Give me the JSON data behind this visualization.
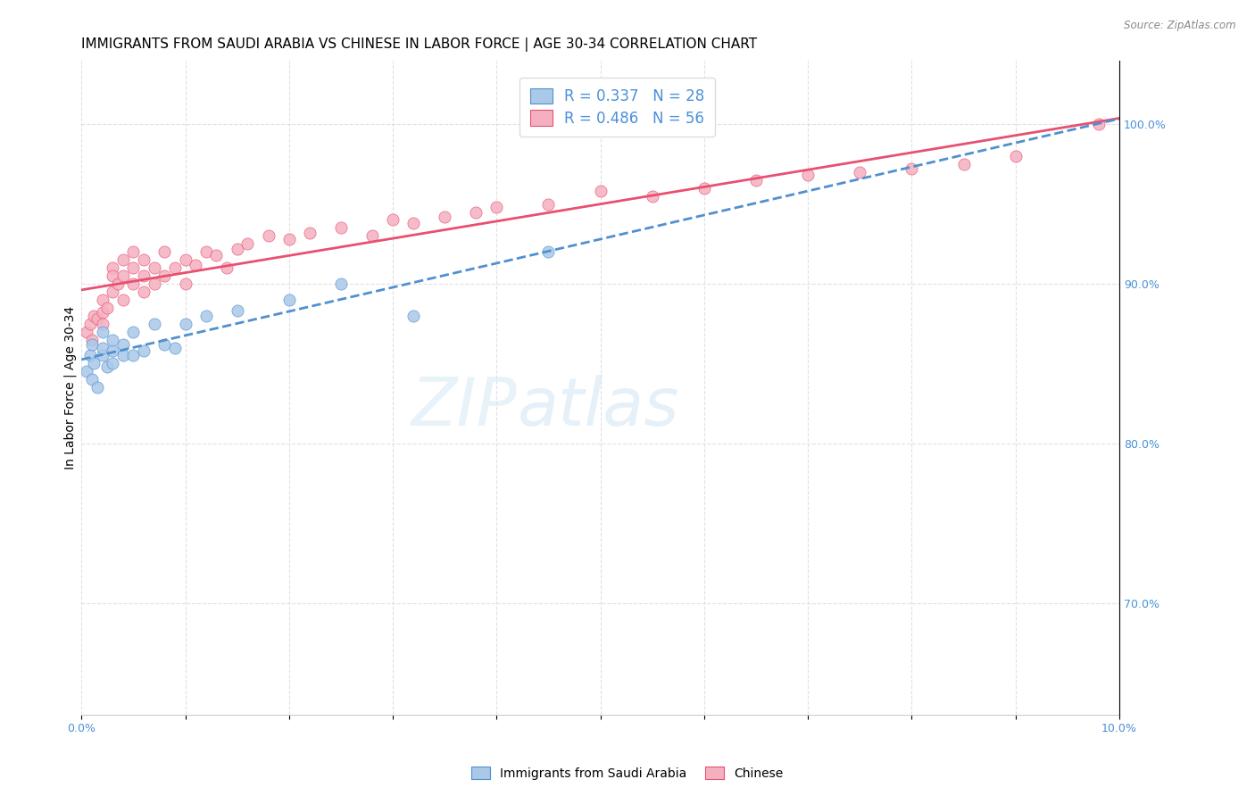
{
  "title": "IMMIGRANTS FROM SAUDI ARABIA VS CHINESE IN LABOR FORCE | AGE 30-34 CORRELATION CHART",
  "source": "Source: ZipAtlas.com",
  "ylabel": "In Labor Force | Age 30-34",
  "xlim": [
    0.0,
    0.1
  ],
  "ylim": [
    0.63,
    1.04
  ],
  "xticks": [
    0.0,
    0.01,
    0.02,
    0.03,
    0.04,
    0.05,
    0.06,
    0.07,
    0.08,
    0.09,
    0.1
  ],
  "xticklabels": [
    "0.0%",
    "",
    "",
    "",
    "",
    "",
    "",
    "",
    "",
    "",
    "10.0%"
  ],
  "yticks": [
    0.7,
    0.8,
    0.9,
    1.0
  ],
  "yticklabels": [
    "70.0%",
    "80.0%",
    "90.0%",
    "100.0%"
  ],
  "saudi_color": "#aac8e8",
  "chinese_color": "#f5b0c0",
  "saudi_line_color": "#5090d0",
  "chinese_line_color": "#e85070",
  "saudi_R": 0.337,
  "saudi_N": 28,
  "chinese_R": 0.486,
  "chinese_N": 56,
  "saudi_x": [
    0.0005,
    0.0008,
    0.001,
    0.001,
    0.0012,
    0.0015,
    0.002,
    0.002,
    0.002,
    0.0025,
    0.003,
    0.003,
    0.003,
    0.004,
    0.004,
    0.005,
    0.005,
    0.006,
    0.007,
    0.008,
    0.009,
    0.01,
    0.012,
    0.015,
    0.02,
    0.025,
    0.032,
    0.045
  ],
  "saudi_y": [
    0.845,
    0.855,
    0.84,
    0.862,
    0.85,
    0.835,
    0.855,
    0.86,
    0.87,
    0.848,
    0.85,
    0.858,
    0.865,
    0.855,
    0.862,
    0.855,
    0.87,
    0.858,
    0.875,
    0.862,
    0.86,
    0.875,
    0.88,
    0.883,
    0.89,
    0.9,
    0.88,
    0.92
  ],
  "chinese_x": [
    0.0005,
    0.0008,
    0.001,
    0.0012,
    0.0015,
    0.002,
    0.002,
    0.002,
    0.0025,
    0.003,
    0.003,
    0.003,
    0.0035,
    0.004,
    0.004,
    0.004,
    0.005,
    0.005,
    0.005,
    0.006,
    0.006,
    0.006,
    0.007,
    0.007,
    0.008,
    0.008,
    0.009,
    0.01,
    0.01,
    0.011,
    0.012,
    0.013,
    0.014,
    0.015,
    0.016,
    0.018,
    0.02,
    0.022,
    0.025,
    0.028,
    0.03,
    0.032,
    0.035,
    0.038,
    0.04,
    0.045,
    0.05,
    0.055,
    0.06,
    0.065,
    0.07,
    0.075,
    0.08,
    0.085,
    0.09,
    0.098
  ],
  "chinese_y": [
    0.87,
    0.875,
    0.865,
    0.88,
    0.878,
    0.882,
    0.875,
    0.89,
    0.885,
    0.91,
    0.905,
    0.895,
    0.9,
    0.915,
    0.905,
    0.89,
    0.92,
    0.91,
    0.9,
    0.915,
    0.905,
    0.895,
    0.91,
    0.9,
    0.92,
    0.905,
    0.91,
    0.915,
    0.9,
    0.912,
    0.92,
    0.918,
    0.91,
    0.922,
    0.925,
    0.93,
    0.928,
    0.932,
    0.935,
    0.93,
    0.94,
    0.938,
    0.942,
    0.945,
    0.948,
    0.95,
    0.958,
    0.955,
    0.96,
    0.965,
    0.968,
    0.97,
    0.972,
    0.975,
    0.98,
    1.0
  ],
  "watermark_zip": "ZIP",
  "watermark_atlas": "atlas",
  "background_color": "#ffffff",
  "grid_color": "#e0e0e0",
  "title_fontsize": 11,
  "axis_label_fontsize": 10,
  "tick_fontsize": 9,
  "legend_fontsize": 12
}
